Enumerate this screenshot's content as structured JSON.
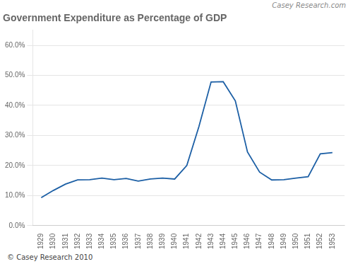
{
  "chart_data": {
    "type": "line",
    "title": "Government Expenditure as Percentage of GDP",
    "annotations": [
      "© Casey Research 2010",
      "Casey Research.com"
    ],
    "x": [
      1929,
      1930,
      1931,
      1932,
      1933,
      1934,
      1935,
      1936,
      1937,
      1938,
      1939,
      1940,
      1941,
      1942,
      1943,
      1944,
      1945,
      1946,
      1947,
      1948,
      1949,
      1950,
      1951,
      1952,
      1953
    ],
    "values": [
      0.093,
      0.117,
      0.138,
      0.152,
      0.153,
      0.158,
      0.153,
      0.157,
      0.148,
      0.155,
      0.158,
      0.155,
      0.2,
      0.33,
      0.478,
      0.479,
      0.415,
      0.245,
      0.178,
      0.152,
      0.153,
      0.158,
      0.163,
      0.239,
      0.243
    ],
    "color": "#1c5fa5",
    "xlim": [
      1928.3,
      1954.0
    ],
    "xticks": [
      1929,
      1930,
      1931,
      1932,
      1933,
      1934,
      1935,
      1936,
      1937,
      1938,
      1939,
      1940,
      1941,
      1942,
      1943,
      1944,
      1945,
      1946,
      1947,
      1948,
      1949,
      1950,
      1951,
      1952,
      1953
    ],
    "ylim": [
      0.0,
      0.65
    ],
    "yticks": [
      {
        "value": 0.0,
        "label": "0.0%"
      },
      {
        "value": 0.1,
        "label": "10.0%"
      },
      {
        "value": 0.2,
        "label": "20.0%"
      },
      {
        "value": 0.3,
        "label": "30.0%"
      },
      {
        "value": 0.4,
        "label": "40.0%"
      },
      {
        "value": 0.5,
        "label": "50.0%"
      },
      {
        "value": 0.6,
        "label": "60.0%"
      }
    ],
    "grid": "y"
  }
}
